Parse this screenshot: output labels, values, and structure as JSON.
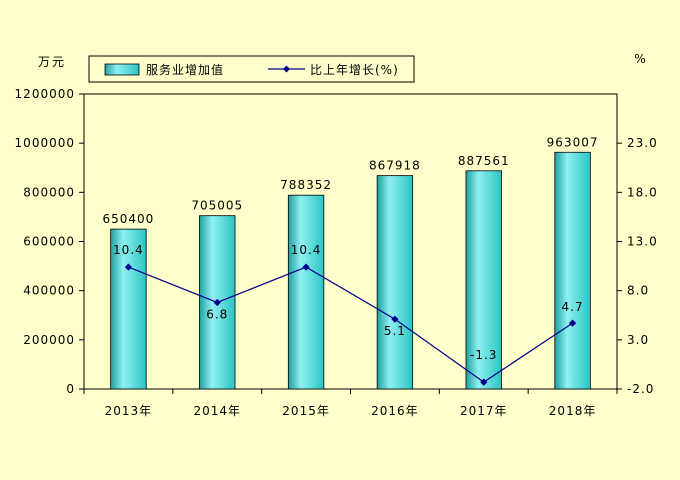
{
  "chart_data": {
    "type": "bar",
    "categories": [
      "2013年",
      "2014年",
      "2015年",
      "2016年",
      "2017年",
      "2018年"
    ],
    "series": [
      {
        "name": "服务业增加值",
        "type": "bar",
        "axis": "left",
        "values": [
          650400,
          705005,
          788352,
          867918,
          887561,
          963007
        ],
        "labels": [
          "650400",
          "705005",
          "788352",
          "867918",
          "887561",
          "963007"
        ]
      },
      {
        "name": "比上年增长(%)",
        "type": "line",
        "axis": "right",
        "values": [
          10.4,
          6.8,
          10.4,
          5.1,
          -1.3,
          4.7
        ],
        "labels": [
          "10.4",
          "6.8",
          "10.4",
          "5.1",
          "-1.3",
          "4.7"
        ]
      }
    ],
    "left_axis": {
      "unit": "万元",
      "ylim": [
        0,
        1200000
      ],
      "ticks": [
        0,
        200000,
        400000,
        600000,
        800000,
        1000000,
        1200000
      ],
      "tick_labels": [
        "0",
        "200000",
        "400000",
        "600000",
        "800000",
        "1000000",
        "1200000"
      ]
    },
    "right_axis": {
      "unit": "%",
      "ylim": [
        -2.0,
        28.0
      ],
      "ticks": [
        -2.0,
        3.0,
        8.0,
        13.0,
        18.0,
        23.0
      ],
      "tick_labels": [
        "-2.0",
        "3.0",
        "8.0",
        "13.0",
        "18.0",
        "23.0"
      ]
    },
    "legend_position": "top",
    "grid": false,
    "colors": {
      "background": "#FFFFCC",
      "bar_fill": "#2BC4C4",
      "bar_light": "#8FF0F0",
      "bar_dark": "#1FA0A0",
      "line": "#00008B"
    }
  }
}
